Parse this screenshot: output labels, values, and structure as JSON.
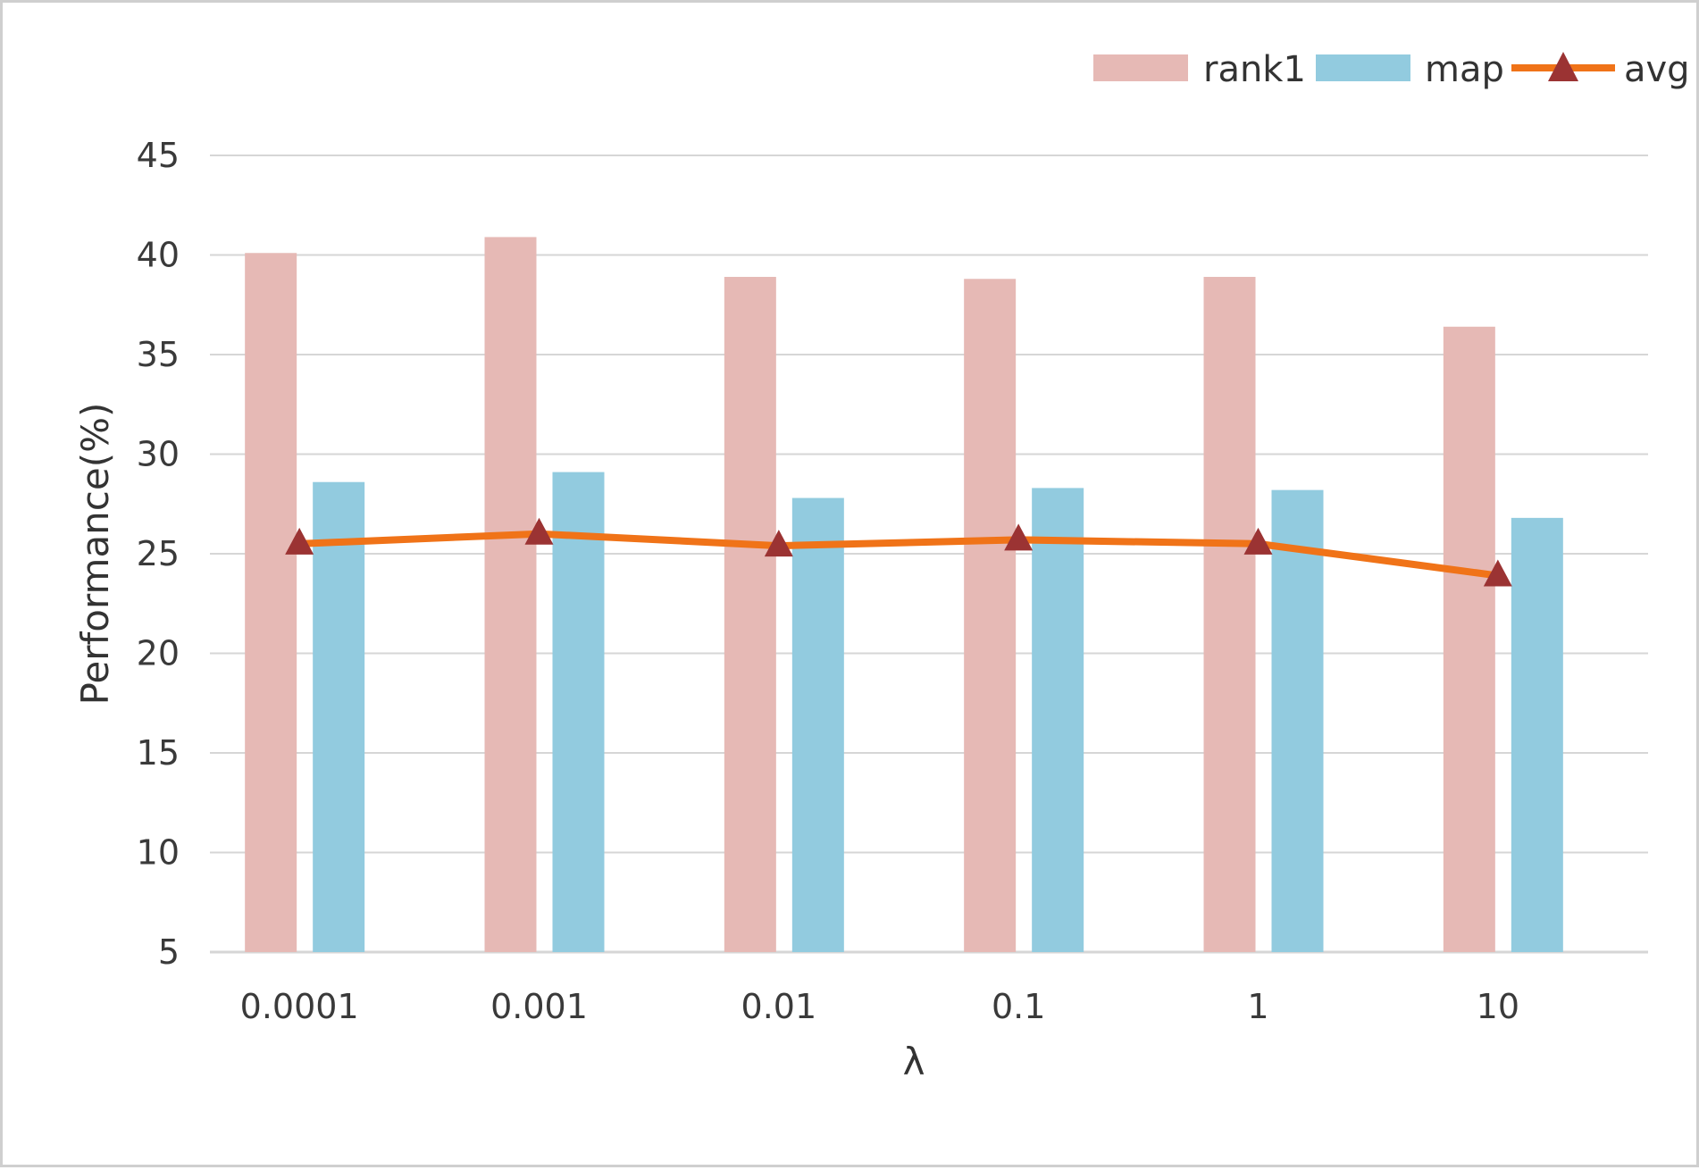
{
  "chart_data": {
    "type": "bar",
    "categories": [
      "0.0001",
      "0.001",
      "0.01",
      "0.1",
      "1",
      "10"
    ],
    "series": [
      {
        "name": "rank1",
        "kind": "bar",
        "color": "#e6b9b5",
        "values": [
          40.1,
          40.9,
          38.9,
          38.8,
          38.9,
          36.4
        ]
      },
      {
        "name": "map",
        "kind": "bar",
        "color": "#92cbdf",
        "values": [
          28.6,
          29.1,
          27.8,
          28.3,
          28.2,
          26.8
        ]
      },
      {
        "name": "avg",
        "kind": "line",
        "color": "#f07318",
        "marker": "triangle",
        "marker_color": "#9b3333",
        "values": [
          25.5,
          26.0,
          25.4,
          25.7,
          25.5,
          23.9
        ]
      }
    ],
    "xlabel": "λ",
    "ylabel": "Performance(%)",
    "ylim": [
      5,
      45
    ],
    "yticks": [
      5,
      10,
      15,
      20,
      25,
      30,
      35,
      40,
      45
    ],
    "grid": true,
    "legend_position": "top-right",
    "gridline_color": "#d6d6d6"
  }
}
